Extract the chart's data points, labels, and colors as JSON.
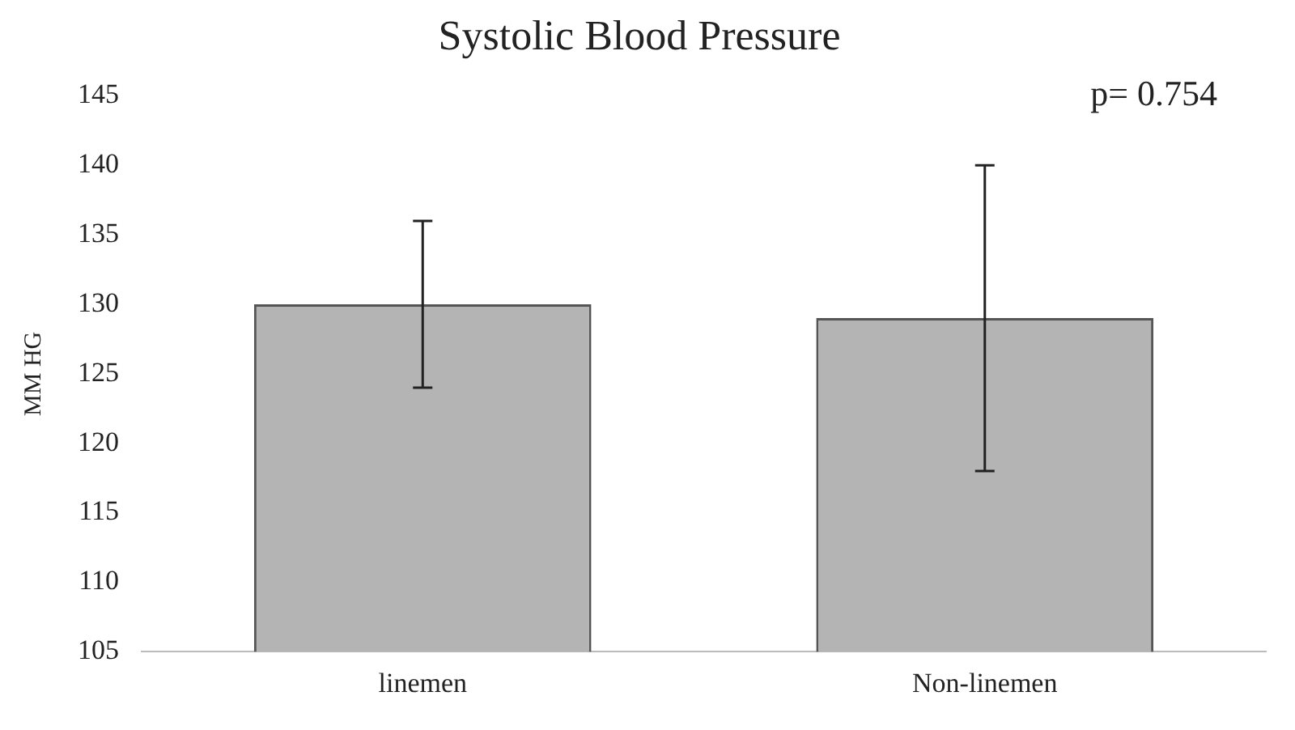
{
  "chart_data": {
    "type": "bar",
    "title": "Systolic Blood Pressure",
    "ylabel": "MM HG",
    "categories": [
      "linemen",
      "Non-linemen"
    ],
    "values": [
      130,
      129
    ],
    "errors": [
      [
        124,
        136
      ],
      [
        118,
        140
      ]
    ],
    "color": "#b4b4b4",
    "ylim": [
      105,
      145
    ],
    "yticks": [
      105,
      110,
      115,
      120,
      125,
      130,
      135,
      140,
      145
    ],
    "grid": false,
    "legend": false,
    "annotations": [
      "p= 0.754"
    ]
  }
}
